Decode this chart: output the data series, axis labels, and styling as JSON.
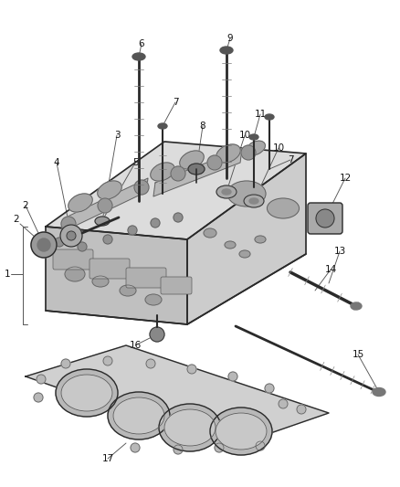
{
  "bg_color": "#ffffff",
  "fig_width": 4.38,
  "fig_height": 5.33,
  "dpi": 100,
  "lc": "#5a5a5a",
  "dark": "#2a2a2a",
  "head_color": "#e0e0e0",
  "head_front": "#c8c8c8",
  "head_right": "#d4d4d4",
  "gasket_color": "#d8d8d8"
}
